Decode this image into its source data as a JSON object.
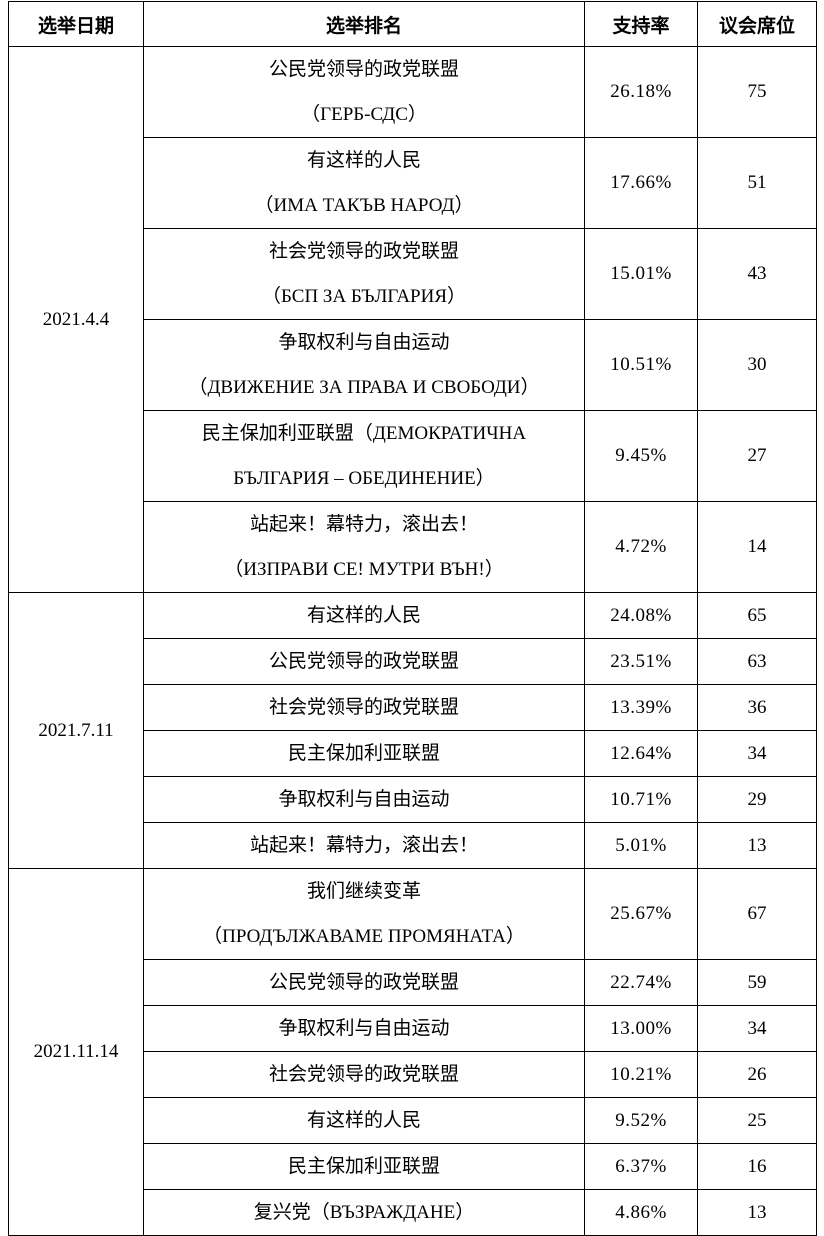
{
  "table": {
    "header": [
      "选举日期",
      "选举排名",
      "支持率",
      "议会席位"
    ],
    "groups": [
      {
        "date": "2021.4.4",
        "rows": [
          {
            "party": [
              "公民党领导的政党联盟",
              "（ГЕРБ-СДС）"
            ],
            "support": "26.18%",
            "seats": 75
          },
          {
            "party": [
              "有这样的人民",
              "（ИМА ТАКЪВ НАРОД）"
            ],
            "support": "17.66%",
            "seats": 51
          },
          {
            "party": [
              "社会党领导的政党联盟",
              "（БСП ЗА БЪЛГАРИЯ）"
            ],
            "support": "15.01%",
            "seats": 43
          },
          {
            "party": [
              "争取权利与自由运动",
              "（ДВИЖЕНИЕ ЗА ПРАВА И СВОБОДИ）"
            ],
            "support": "10.51%",
            "seats": 30
          },
          {
            "party": [
              "民主保加利亚联盟（ДЕМОКРАТИЧНА",
              "БЪЛГАРИЯ – ОБЕДИНЕНИЕ）"
            ],
            "support": "9.45%",
            "seats": 27
          },
          {
            "party": [
              "站起来！幕特力，滚出去！",
              "（ИЗПРАВИ СЕ! МУТРИ ВЪН!）"
            ],
            "support": "4.72%",
            "seats": 14
          }
        ]
      },
      {
        "date": "2021.7.11",
        "rows": [
          {
            "party": [
              "有这样的人民"
            ],
            "support": "24.08%",
            "seats": 65
          },
          {
            "party": [
              "公民党领导的政党联盟"
            ],
            "support": "23.51%",
            "seats": 63
          },
          {
            "party": [
              "社会党领导的政党联盟"
            ],
            "support": "13.39%",
            "seats": 36
          },
          {
            "party": [
              "民主保加利亚联盟"
            ],
            "support": "12.64%",
            "seats": 34
          },
          {
            "party": [
              "争取权利与自由运动"
            ],
            "support": "10.71%",
            "seats": 29
          },
          {
            "party": [
              "站起来！幕特力，滚出去！"
            ],
            "support": "5.01%",
            "seats": 13
          }
        ]
      },
      {
        "date": "2021.11.14",
        "rows": [
          {
            "party": [
              "我们继续变革",
              "（ПРОДЪЛЖАВАМЕ ПРОМЯНАТА）"
            ],
            "support": "25.67%",
            "seats": 67
          },
          {
            "party": [
              "公民党领导的政党联盟"
            ],
            "support": "22.74%",
            "seats": 59
          },
          {
            "party": [
              "争取权利与自由运动"
            ],
            "support": "13.00%",
            "seats": 34
          },
          {
            "party": [
              "社会党领导的政党联盟"
            ],
            "support": "10.21%",
            "seats": 26
          },
          {
            "party": [
              "有这样的人民"
            ],
            "support": "9.52%",
            "seats": 25
          },
          {
            "party": [
              "民主保加利亚联盟"
            ],
            "support": "6.37%",
            "seats": 16
          },
          {
            "party": [
              "复兴党（ВЪЗРАЖДАНЕ）"
            ],
            "support": "4.86%",
            "seats": 13
          }
        ]
      }
    ]
  }
}
